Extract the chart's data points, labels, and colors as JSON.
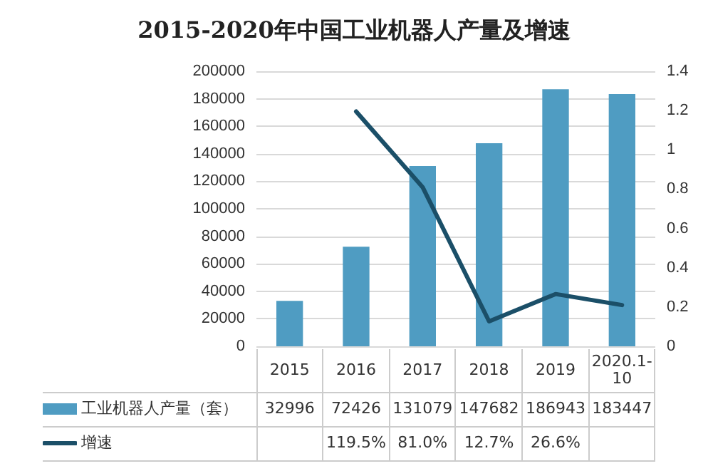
{
  "chart_data": {
    "type": "bar",
    "title": "2015-2020年中国工业机器人产量及增速",
    "categories": [
      "2015",
      "2016",
      "2017",
      "2018",
      "2019",
      "2020.1-10"
    ],
    "series": [
      {
        "name": "工业机器人产量（套）",
        "color": "#4f9cc2",
        "values": [
          32996,
          72426,
          131079,
          147682,
          186943,
          183447
        ],
        "value_labels": [
          "32996",
          "72426",
          "131079",
          "147682",
          "186943",
          "183447"
        ]
      },
      {
        "name": "增速",
        "type": "line",
        "axis": "y2",
        "color": "#1b4f68",
        "values": [
          null,
          1.195,
          0.81,
          0.127,
          0.266,
          0.21
        ],
        "value_labels": [
          null,
          "119.5%",
          "81.0%",
          "12.7%",
          "26.6%",
          null
        ]
      }
    ],
    "ylim": [
      0,
      200000
    ],
    "yticks": [
      0,
      20000,
      40000,
      60000,
      80000,
      100000,
      120000,
      140000,
      160000,
      180000,
      200000
    ],
    "y2lim": [
      0,
      1.4
    ],
    "y2ticks": [
      0,
      0.2,
      0.4,
      0.6,
      0.8,
      1,
      1.2,
      1.4
    ],
    "grid": "y",
    "legend": "bottom",
    "marker": "none"
  }
}
